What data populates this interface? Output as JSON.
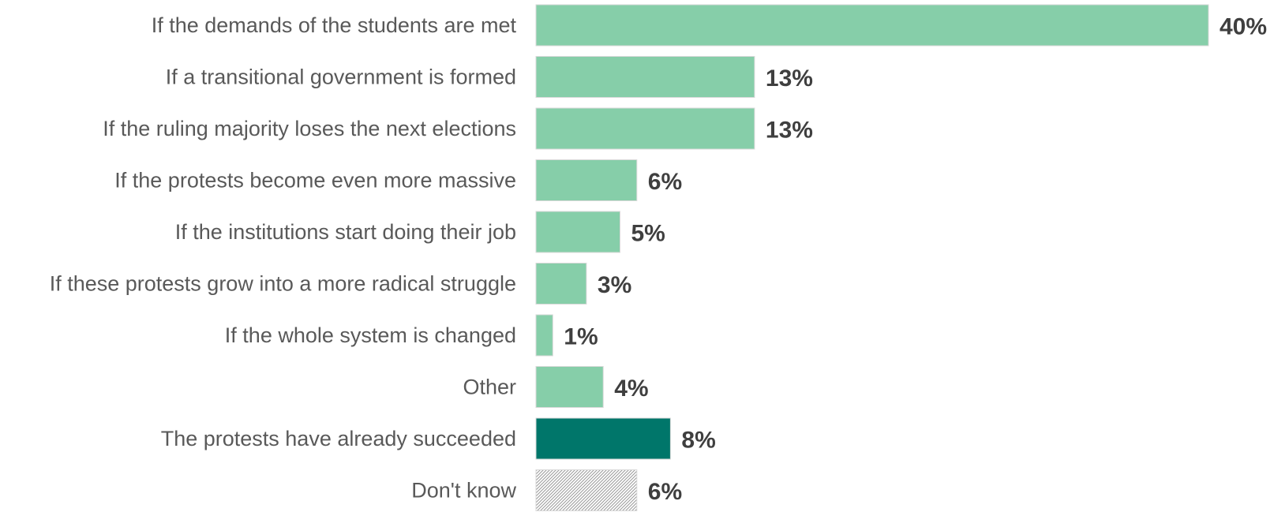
{
  "chart_data": {
    "type": "bar",
    "orientation": "horizontal",
    "title": "",
    "xlabel": "",
    "ylabel": "",
    "grid": false,
    "legend": "none",
    "xlim": [
      0,
      40
    ],
    "categories": [
      "If the demands of the students are met",
      "If a transitional government is formed",
      "If the ruling majority loses the next elections",
      "If the protests become even more massive",
      "If the institutions start doing their job",
      "If these protests grow into a more radical struggle",
      "If the whole system is changed",
      "Other",
      "The protests have already succeeded",
      "Don't know"
    ],
    "values": [
      40,
      13,
      13,
      6,
      5,
      3,
      1,
      4,
      8,
      6
    ],
    "data_labels": [
      "40%",
      "13%",
      "13%",
      "6%",
      "5%",
      "3%",
      "1%",
      "4%",
      "8%",
      "6%"
    ],
    "bar_styles": [
      "light",
      "light",
      "light",
      "light",
      "light",
      "light",
      "light",
      "light",
      "dark",
      "hatched"
    ],
    "colors": {
      "light": "#86cea9",
      "dark": "#00766a",
      "hatch_fg": "#9a9a9a",
      "hatch_bg": "#ffffff"
    }
  }
}
